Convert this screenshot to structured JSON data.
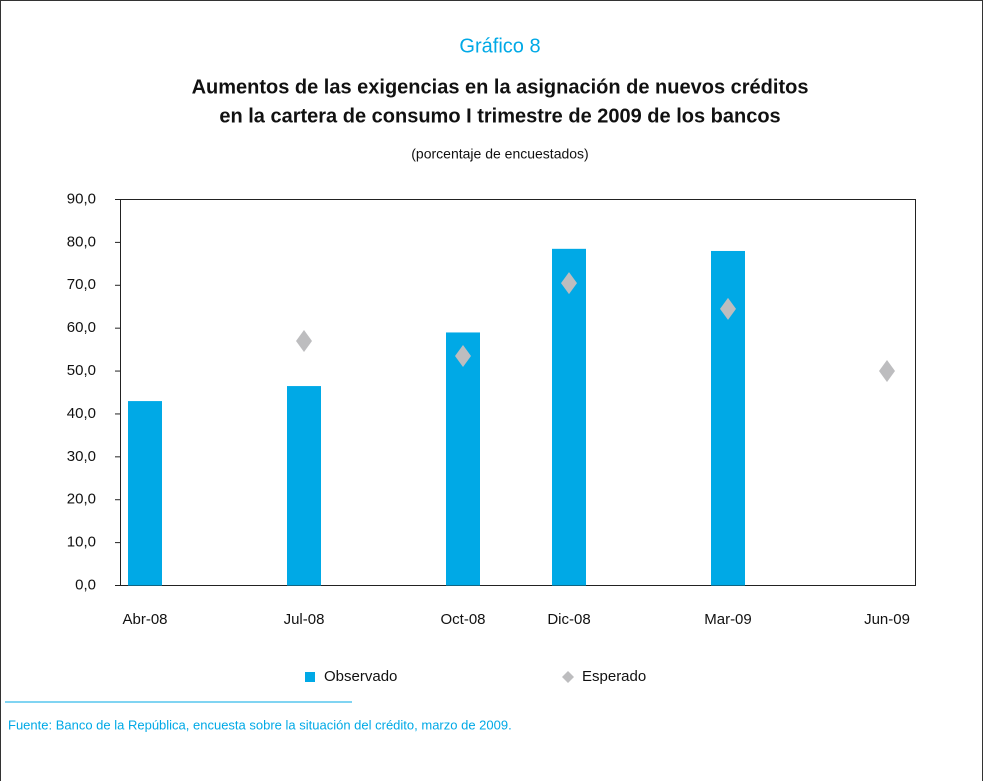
{
  "chart_data": {
    "type": "bar",
    "kicker": "Gráfico 8",
    "title": [
      "Aumentos de las exigencias en la asignación de nuevos créditos",
      "en la cartera de consumo I trimestre de 2009 de los bancos"
    ],
    "subtitle": "(porcentaje de encuestados)",
    "x": [
      "2008-04",
      "2008-07",
      "2008-10",
      "2008-12",
      "2009-03",
      "2009-06"
    ],
    "xticks": [
      {
        "value": "2008-04",
        "label": "Abr-08"
      },
      {
        "value": "2008-07",
        "label": "Jul-08"
      },
      {
        "value": "2008-10",
        "label": "Oct-08"
      },
      {
        "value": "2008-12",
        "label": "Dic-08"
      },
      {
        "value": "2009-03",
        "label": "Mar-09"
      },
      {
        "value": "2009-06",
        "label": "Jun-09"
      }
    ],
    "series": [
      {
        "name": "Observado",
        "type": "bar",
        "color": "#00a9e6",
        "values": [
          43,
          46.5,
          59,
          78.5,
          78,
          null
        ]
      },
      {
        "name": "Esperado",
        "type": "diamond",
        "color": "#bdbdbf",
        "values": [
          null,
          57,
          53.5,
          70.5,
          64.5,
          50
        ]
      }
    ],
    "ylim": [
      0,
      90
    ],
    "yticks": [
      {
        "value": 0,
        "label": "0,0"
      },
      {
        "value": 10,
        "label": "10,0"
      },
      {
        "value": 20,
        "label": "20,0"
      },
      {
        "value": 30,
        "label": "30,0"
      },
      {
        "value": 40,
        "label": "40,0"
      },
      {
        "value": 50,
        "label": "50,0"
      },
      {
        "value": 60,
        "label": "60,0"
      },
      {
        "value": 70,
        "label": "70,0"
      },
      {
        "value": 80,
        "label": "80,0"
      },
      {
        "value": 90,
        "label": "90,0"
      }
    ],
    "source": "Fuente: Banco de la República, encuesta sobre la situación del crédito, marzo de 2009."
  }
}
